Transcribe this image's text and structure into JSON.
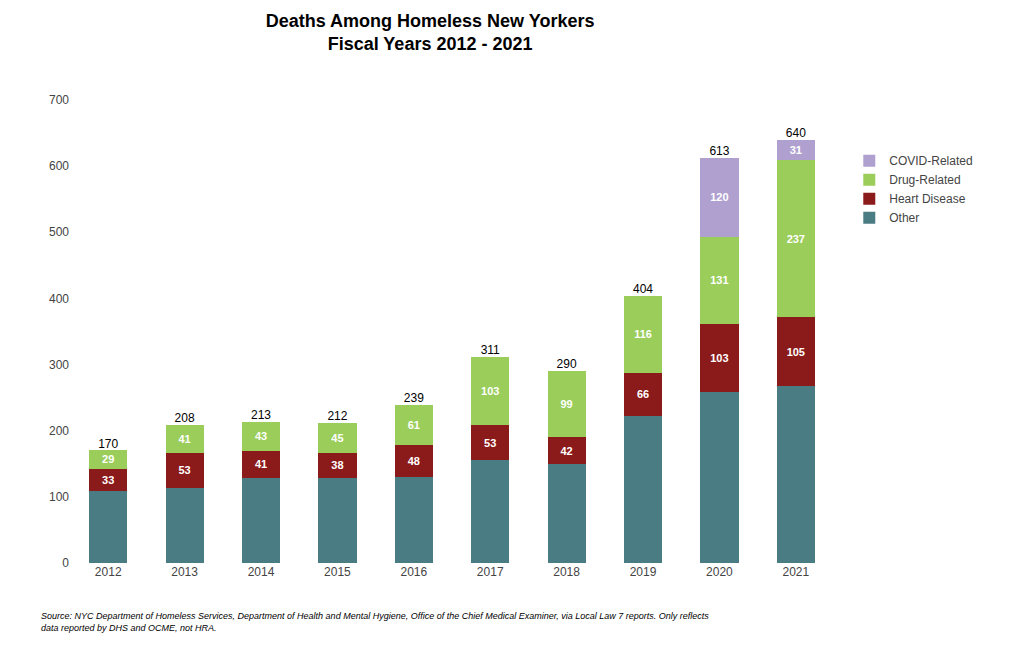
{
  "chart_data": {
    "type": "bar",
    "stacked": true,
    "title": "Deaths Among Homeless New Yorkers",
    "subtitle": "Fiscal Years 2012 - 2021",
    "categories": [
      "2012",
      "2013",
      "2014",
      "2015",
      "2016",
      "2017",
      "2018",
      "2019",
      "2020",
      "2021"
    ],
    "series": [
      {
        "name": "Other",
        "color": "#4a7c84",
        "values": [
          109,
          114,
          129,
          129,
          130,
          155,
          149,
          222,
          259,
          267
        ],
        "data_labels": false
      },
      {
        "name": "Heart Disease",
        "color": "#8b1a1a",
        "values": [
          33,
          53,
          41,
          38,
          48,
          53,
          42,
          66,
          103,
          105
        ],
        "data_labels": true
      },
      {
        "name": "Drug-Related",
        "color": "#9acd5a",
        "values": [
          29,
          41,
          43,
          45,
          61,
          103,
          99,
          116,
          131,
          237
        ],
        "data_labels": true
      },
      {
        "name": "COVID-Related",
        "color": "#b0a0d0",
        "values": [
          0,
          0,
          0,
          0,
          0,
          0,
          0,
          0,
          120,
          31
        ],
        "data_labels": true
      }
    ],
    "totals": [
      170,
      208,
      213,
      212,
      239,
      311,
      290,
      404,
      613,
      640
    ],
    "ylim": [
      0,
      700
    ],
    "yticks": [
      0,
      100,
      200,
      300,
      400,
      500,
      600,
      700
    ],
    "grid": false,
    "legend": "right",
    "source": "Source: NYC Department of Homeless Services, Department of Health and Mental Hygiene, Office of the Chief Medical Examiner, via Local Law 7 reports. Only reflects\ndata reported by DHS and OCME, not HRA."
  }
}
